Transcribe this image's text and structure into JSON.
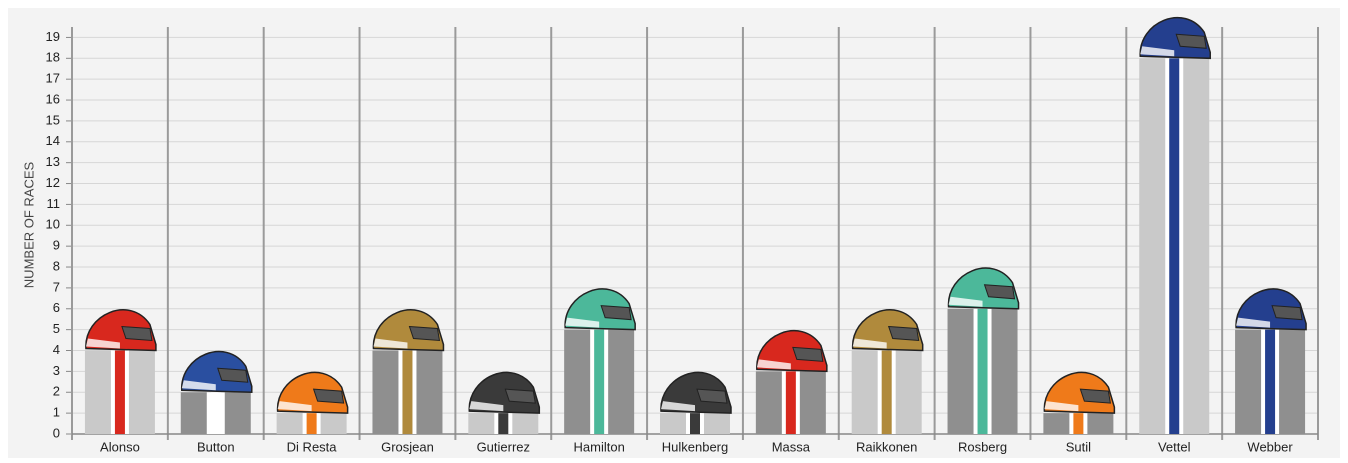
{
  "chart_data": {
    "type": "bar",
    "y_label": "NUMBER OF RACES",
    "categories": [
      "Alonso",
      "Button",
      "Di Resta",
      "Grosjean",
      "Gutierrez",
      "Hamilton",
      "Hulkenberg",
      "Massa",
      "Raikkonen",
      "Rosberg",
      "Sutil",
      "Vettel",
      "Webber"
    ],
    "values": [
      4,
      2,
      1,
      4,
      1,
      5,
      1,
      3,
      4,
      6,
      1,
      18,
      5
    ],
    "colors": [
      "#c9c9c9",
      "#8f8f8f",
      "#c9c9c9",
      "#8f8f8f",
      "#c9c9c9",
      "#8f8f8f",
      "#c9c9c9",
      "#8f8f8f",
      "#c9c9c9",
      "#8f8f8f",
      "#8f8f8f",
      "#c9c9c9",
      "#8f8f8f"
    ],
    "stripe_colors": [
      "#d8281e",
      "#ffffff",
      "#ef7a1a",
      "#b08a3c",
      "#3a3a3a",
      "#4cb89a",
      "#3a3a3a",
      "#d8281e",
      "#b08a3c",
      "#4cb89a",
      "#ef7a1a",
      "#243f8e",
      "#243f8e"
    ],
    "ylim": [
      0,
      19.5
    ],
    "yticks": [
      0,
      1,
      2,
      3,
      4,
      5,
      6,
      7,
      8,
      9,
      10,
      11,
      12,
      13,
      14,
      15,
      16,
      17,
      18,
      19
    ],
    "grid": true
  }
}
